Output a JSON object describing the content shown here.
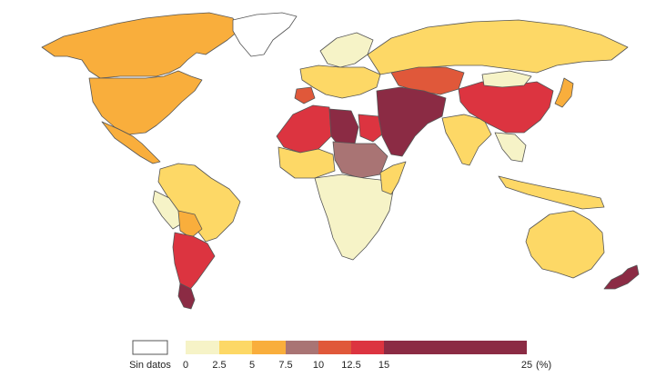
{
  "legend": {
    "no_data_label": "Sin datos",
    "no_data_color": "#ffffff",
    "bins": [
      {
        "from": 0,
        "to": 2.5,
        "color": "#f6f3c7"
      },
      {
        "from": 2.5,
        "to": 5,
        "color": "#fdd866"
      },
      {
        "from": 5,
        "to": 7.5,
        "color": "#f9ae3c"
      },
      {
        "from": 7.5,
        "to": 10,
        "color": "#a97474"
      },
      {
        "from": 10,
        "to": 12.5,
        "color": "#e0583a"
      },
      {
        "from": 12.5,
        "to": 15,
        "color": "#dc3440"
      },
      {
        "from": 15,
        "to": 25,
        "color": "#8b2b44"
      }
    ],
    "ticks": [
      "0",
      "2.5",
      "5",
      "7.5",
      "10",
      "12.5",
      "15",
      "25"
    ],
    "unit": "(%)"
  },
  "regions": [
    {
      "name": "canada-alaska",
      "color": "#f9ae3c"
    },
    {
      "name": "usa",
      "color": "#f9ae3c"
    },
    {
      "name": "mexico",
      "color": "#f9ae3c"
    },
    {
      "name": "greenland",
      "color": "#ffffff"
    },
    {
      "name": "south-america-north",
      "color": "#fdd866"
    },
    {
      "name": "peru",
      "color": "#f6f3c7"
    },
    {
      "name": "bolivia",
      "color": "#f9ae3c"
    },
    {
      "name": "chile-argentina",
      "color": "#dc3440"
    },
    {
      "name": "patagonia",
      "color": "#8b2b44"
    },
    {
      "name": "scandinavia",
      "color": "#f6f3c7"
    },
    {
      "name": "europe",
      "color": "#fdd866"
    },
    {
      "name": "iberia",
      "color": "#e0583a"
    },
    {
      "name": "north-africa-west",
      "color": "#dc3440"
    },
    {
      "name": "libya",
      "color": "#8b2b44"
    },
    {
      "name": "egypt",
      "color": "#dc3440"
    },
    {
      "name": "sahel",
      "color": "#fdd866"
    },
    {
      "name": "chad-sudan",
      "color": "#a97474"
    },
    {
      "name": "central-southern-africa",
      "color": "#f6f3c7"
    },
    {
      "name": "east-africa",
      "color": "#fdd866"
    },
    {
      "name": "russia",
      "color": "#fdd866"
    },
    {
      "name": "central-asia",
      "color": "#e0583a"
    },
    {
      "name": "middle-east",
      "color": "#8b2b44"
    },
    {
      "name": "india",
      "color": "#fdd866"
    },
    {
      "name": "china",
      "color": "#dc3440"
    },
    {
      "name": "mongolia",
      "color": "#f6f3c7"
    },
    {
      "name": "southeast-asia",
      "color": "#f6f3c7"
    },
    {
      "name": "indonesia",
      "color": "#fdd866"
    },
    {
      "name": "japan",
      "color": "#f9ae3c"
    },
    {
      "name": "australia",
      "color": "#fdd866"
    },
    {
      "name": "new-zealand",
      "color": "#8b2b44"
    }
  ]
}
